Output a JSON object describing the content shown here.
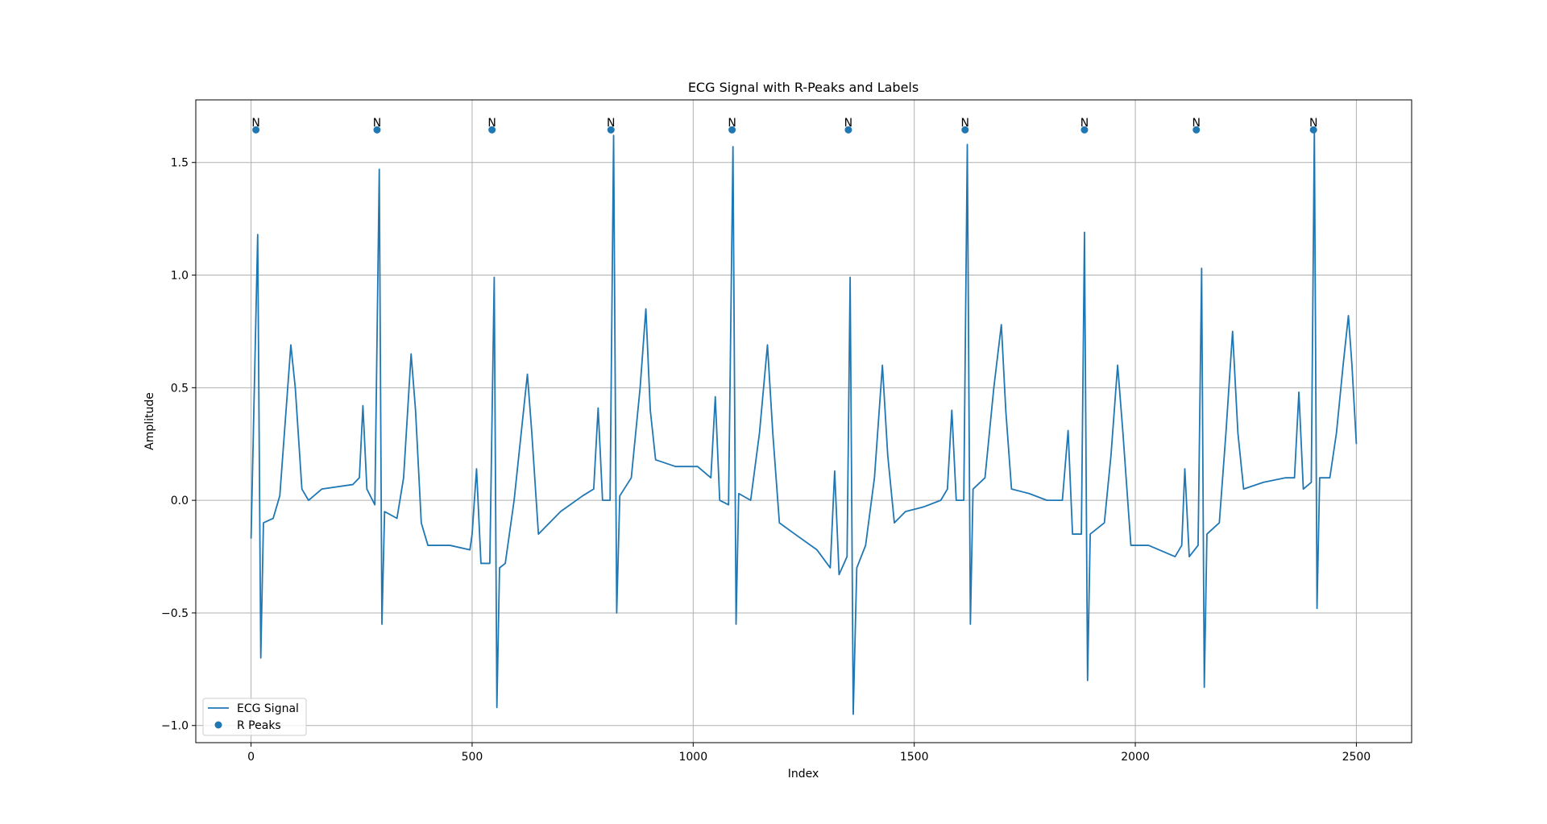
{
  "chart_data": {
    "type": "line",
    "title": "ECG Signal with R-Peaks and Labels",
    "xlabel": "Index",
    "ylabel": "Amplitude",
    "xlim": [
      -125,
      2625
    ],
    "ylim": [
      -1.076,
      1.778
    ],
    "xticks": [
      0,
      500,
      1000,
      1500,
      2000,
      2500
    ],
    "yticks": [
      {
        "value": -1.0,
        "label": "−1.0"
      },
      {
        "value": -0.5,
        "label": "−0.5"
      },
      {
        "value": 0.0,
        "label": "0.0"
      },
      0.5,
      {
        "value": 1.0,
        "label": "1.0"
      },
      1.5
    ],
    "grid": true,
    "legend": "lower left",
    "series": [
      {
        "name": "ECG Signal",
        "type": "line",
        "color": "#1f77b4",
        "x": [
          0,
          15,
          22,
          28,
          50,
          65,
          90,
          100,
          115,
          130,
          160,
          230,
          245,
          253,
          262,
          280,
          290,
          296,
          302,
          330,
          345,
          362,
          372,
          385,
          400,
          450,
          495,
          500,
          510,
          520,
          540,
          550,
          556,
          562,
          575,
          595,
          625,
          635,
          650,
          700,
          750,
          775,
          785,
          795,
          812,
          820,
          827,
          834,
          860,
          880,
          893,
          903,
          915,
          960,
          1010,
          1040,
          1050,
          1060,
          1080,
          1090,
          1097,
          1103,
          1130,
          1150,
          1168,
          1180,
          1195,
          1230,
          1280,
          1310,
          1320,
          1330,
          1348,
          1355,
          1362,
          1370,
          1390,
          1410,
          1428,
          1440,
          1455,
          1480,
          1520,
          1560,
          1575,
          1585,
          1595,
          1612,
          1620,
          1627,
          1633,
          1660,
          1680,
          1697,
          1707,
          1720,
          1760,
          1800,
          1835,
          1848,
          1858,
          1878,
          1885,
          1892,
          1898,
          1930,
          1945,
          1960,
          1972,
          1990,
          2030,
          2090,
          2105,
          2112,
          2122,
          2142,
          2150,
          2156,
          2162,
          2190,
          2205,
          2220,
          2232,
          2245,
          2290,
          2340,
          2360,
          2370,
          2380,
          2398,
          2405,
          2411,
          2417,
          2440,
          2455,
          2470,
          2482,
          2490,
          2500
        ],
        "values": [
          -0.17,
          1.18,
          -0.7,
          -0.1,
          -0.08,
          0.02,
          0.69,
          0.5,
          0.05,
          0.0,
          0.05,
          0.07,
          0.1,
          0.42,
          0.05,
          -0.02,
          1.47,
          -0.55,
          -0.05,
          -0.08,
          0.1,
          0.65,
          0.4,
          -0.1,
          -0.2,
          -0.2,
          -0.22,
          -0.15,
          0.14,
          -0.28,
          -0.28,
          0.99,
          -0.92,
          -0.3,
          -0.28,
          0.0,
          0.56,
          0.3,
          -0.15,
          -0.05,
          0.02,
          0.05,
          0.41,
          0.0,
          0.0,
          1.62,
          -0.5,
          0.02,
          0.1,
          0.5,
          0.85,
          0.4,
          0.18,
          0.15,
          0.15,
          0.1,
          0.46,
          0.0,
          -0.02,
          1.57,
          -0.55,
          0.03,
          0.0,
          0.3,
          0.69,
          0.3,
          -0.1,
          -0.15,
          -0.22,
          -0.3,
          0.13,
          -0.33,
          -0.25,
          0.99,
          -0.95,
          -0.3,
          -0.2,
          0.1,
          0.6,
          0.2,
          -0.1,
          -0.05,
          -0.03,
          0.0,
          0.05,
          0.4,
          0.0,
          0.0,
          1.58,
          -0.55,
          0.05,
          0.1,
          0.5,
          0.78,
          0.4,
          0.05,
          0.03,
          0.0,
          0.0,
          0.31,
          -0.15,
          -0.15,
          1.19,
          -0.8,
          -0.15,
          -0.1,
          0.2,
          0.6,
          0.3,
          -0.2,
          -0.2,
          -0.25,
          -0.2,
          0.14,
          -0.25,
          -0.2,
          1.03,
          -0.83,
          -0.15,
          -0.1,
          0.3,
          0.75,
          0.3,
          0.05,
          0.08,
          0.1,
          0.1,
          0.48,
          0.05,
          0.08,
          1.65,
          -0.48,
          0.1,
          0.1,
          0.3,
          0.6,
          0.82,
          0.6,
          0.25
        ]
      },
      {
        "name": "R Peaks",
        "type": "scatter",
        "color": "#1f77b4",
        "x": [
          11,
          285,
          545,
          814,
          1088,
          1351,
          1615,
          1885,
          2138,
          2403
        ],
        "values": [
          1.645,
          1.645,
          1.645,
          1.645,
          1.645,
          1.645,
          1.645,
          1.645,
          1.645,
          1.645
        ],
        "labels": [
          "N",
          "N",
          "N",
          "N",
          "N",
          "N",
          "N",
          "N",
          "N",
          "N"
        ]
      }
    ]
  }
}
